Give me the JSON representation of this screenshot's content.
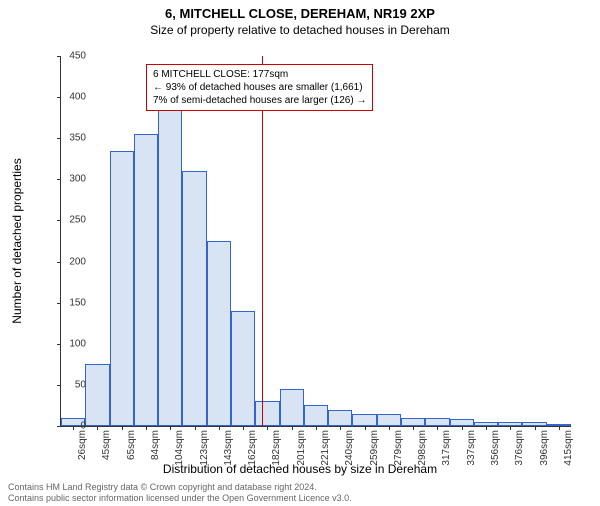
{
  "title": "6, MITCHELL CLOSE, DEREHAM, NR19 2XP",
  "subtitle": "Size of property relative to detached houses in Dereham",
  "ylabel": "Number of detached properties",
  "xlabel": "Distribution of detached houses by size in Dereham",
  "chart": {
    "type": "histogram",
    "ylim": [
      0,
      450
    ],
    "ytick_step": 50,
    "bar_color": "#d8e3f3",
    "bar_border": "#3366cc",
    "axis_color": "#333333",
    "background_color": "#ffffff",
    "xtick_labels": [
      "26sqm",
      "45sqm",
      "65sqm",
      "84sqm",
      "104sqm",
      "123sqm",
      "143sqm",
      "162sqm",
      "182sqm",
      "201sqm",
      "221sqm",
      "240sqm",
      "259sqm",
      "279sqm",
      "298sqm",
      "317sqm",
      "337sqm",
      "356sqm",
      "376sqm",
      "396sqm",
      "415sqm"
    ],
    "values": [
      10,
      75,
      335,
      355,
      420,
      310,
      225,
      140,
      30,
      45,
      25,
      20,
      15,
      15,
      10,
      10,
      8,
      5,
      5,
      5,
      3
    ],
    "marker_color": "#cc0000",
    "marker_sqm": 177,
    "x_range": [
      16,
      425
    ],
    "annotation": {
      "line1": "6 MITCHELL CLOSE: 177sqm",
      "line2": "← 93% of detached houses are smaller (1,661)",
      "line3": "7% of semi-detached houses are larger (126) →",
      "border_color": "#cc0000"
    }
  },
  "attribution_line1": "Contains HM Land Registry data © Crown copyright and database right 2024.",
  "attribution_line2": "Contains public sector information licensed under the Open Government Licence v3.0."
}
